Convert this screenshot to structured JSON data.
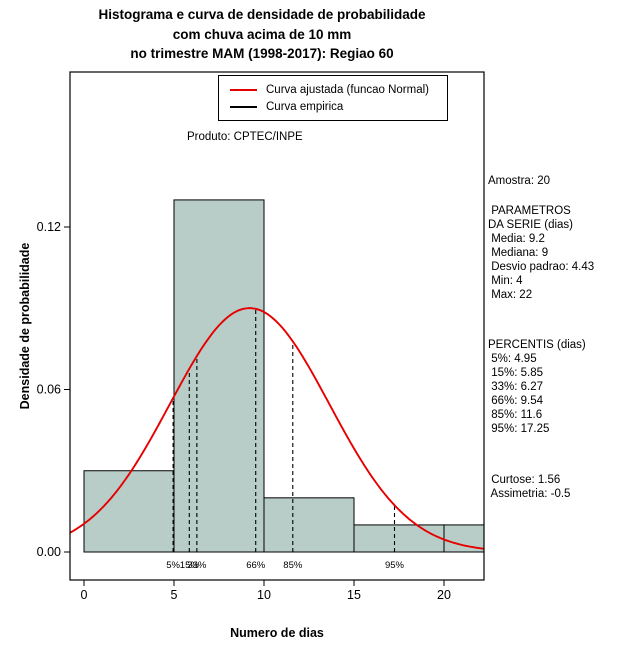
{
  "chart_data": {
    "type": "bar",
    "title": {
      "line1": "Histograma e curva de densidade de probabilidade",
      "line2": "com chuva acima de 10 mm",
      "line3": "no trimestre MAM (1998-2017): Regiao 60"
    },
    "xlabel": "Numero de dias",
    "ylabel": "Densidade de probabilidade",
    "annotation": "Produto: CPTEC/INPE",
    "x_ticks": [
      0,
      5,
      10,
      15,
      20
    ],
    "y_ticks": [
      "0.00",
      "0.06",
      "0.12"
    ],
    "xlim": [
      -0.8,
      22.2
    ],
    "ylim": [
      -0.0103,
      0.1773
    ],
    "grid": false,
    "legend_position": "top-center-inside",
    "histogram": {
      "breaks": [
        0,
        5,
        10,
        15,
        20,
        25
      ],
      "densities": [
        0.03,
        0.13,
        0.02,
        0.01,
        0.01
      ],
      "fill": "#b8cdc8",
      "stroke": "#000000"
    },
    "normal_curve": {
      "mean": 9.2,
      "sd": 4.43,
      "color": "#e60000"
    },
    "percentile_lines": [
      {
        "label": "5%",
        "x": 4.95
      },
      {
        "label": "15%",
        "x": 5.85
      },
      {
        "label": "33%",
        "x": 6.27
      },
      {
        "label": "66%",
        "x": 9.54
      },
      {
        "label": "85%",
        "x": 11.6
      },
      {
        "label": "95%",
        "x": 17.25
      }
    ],
    "legend": [
      {
        "label": "Curva ajustada (funcao Normal)",
        "color": "#e60000"
      },
      {
        "label": "Curva empirica",
        "color": "#000000"
      }
    ]
  },
  "stats_panel": {
    "groups": [
      {
        "lines": [
          "Amostra: 20"
        ]
      },
      {
        "lines": [
          " PARAMETROS",
          "DA SERIE (dias)",
          " Media: 9.2",
          " Mediana: 9",
          " Desvio padrao: 4.43",
          " Min: 4",
          " Max: 22"
        ]
      },
      {
        "lines": [
          "PERCENTIS (dias)",
          " 5%: 4.95",
          " 15%: 5.85",
          " 33%: 6.27",
          " 66%: 9.54",
          " 85%: 11.6",
          " 95%: 17.25"
        ]
      },
      {
        "lines": [
          " Curtose: 1.56",
          " Assimetria: -0.5"
        ]
      }
    ]
  }
}
